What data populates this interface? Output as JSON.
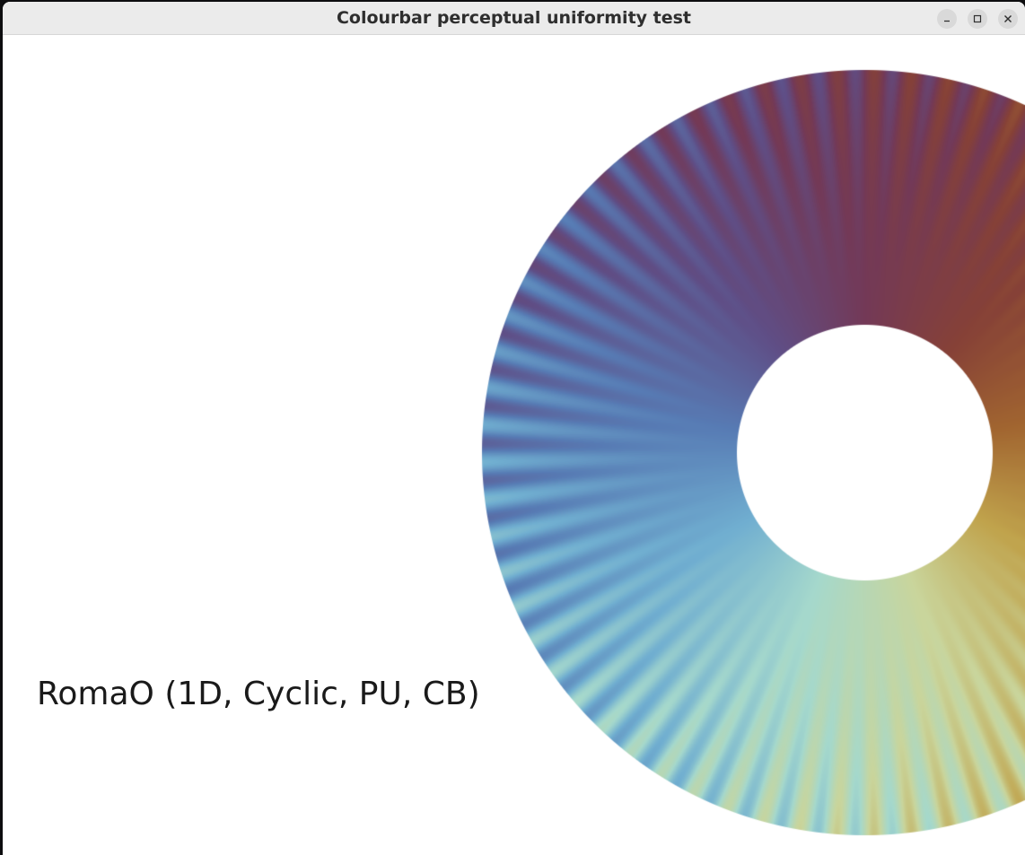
{
  "window": {
    "title": "Colourbar perceptual uniformity test",
    "controls": {
      "minimize_icon": "minimize-icon",
      "maximize_icon": "maximize-icon",
      "close_icon": "close-icon"
    }
  },
  "figure": {
    "label": "RomaO (1D, Cyclic, PU, CB)",
    "colormap": "RomaO",
    "colormap_stops": [
      "#733957",
      "#864137",
      "#a16530",
      "#c0a34c",
      "#c9d59c",
      "#a5d8cc",
      "#70aed0",
      "#577bb4",
      "#5f4e86",
      "#733957"
    ]
  }
}
